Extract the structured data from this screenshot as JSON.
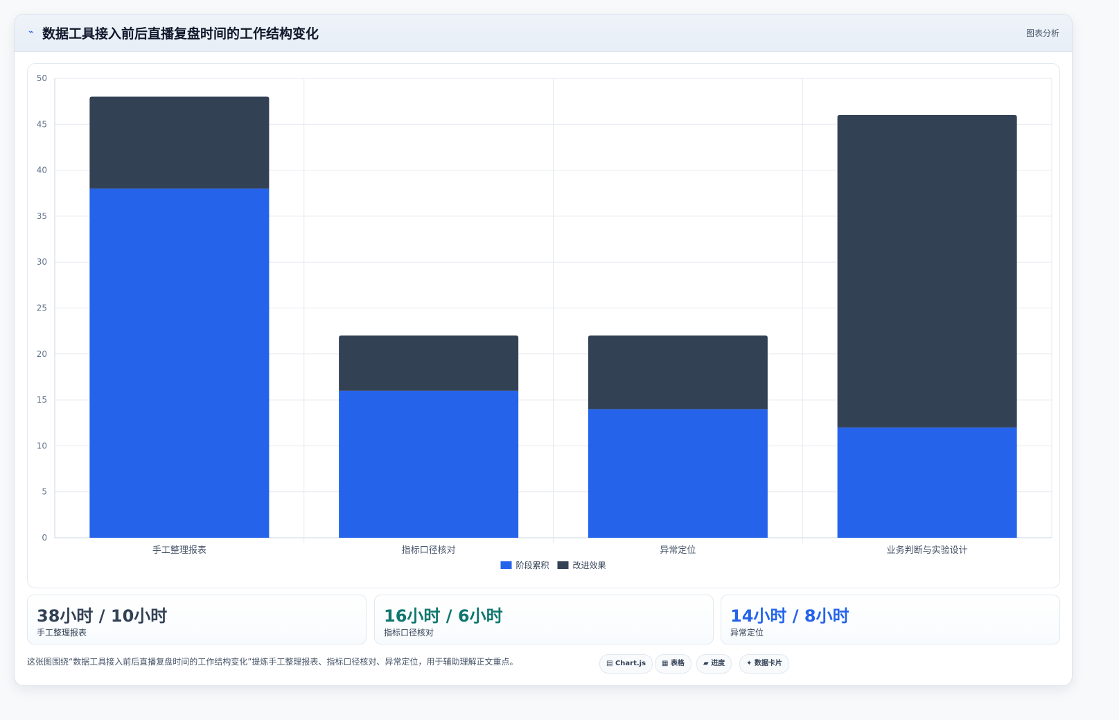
{
  "header": {
    "icon": "chart-line-icon",
    "title": "数据工具接入前后直播复盘时间的工作结构变化",
    "tag": "图表分析"
  },
  "chart_data": {
    "type": "bar",
    "stacked": true,
    "categories": [
      "手工整理报表",
      "指标口径核对",
      "异常定位",
      "业务判断与实验设计"
    ],
    "series": [
      {
        "name": "阶段累积",
        "color": "#2563eb",
        "values": [
          38,
          16,
          14,
          12
        ]
      },
      {
        "name": "改进效果",
        "color": "#334155",
        "values": [
          10,
          6,
          8,
          34
        ]
      }
    ],
    "ylim": [
      0,
      50
    ],
    "yticks": [
      0,
      5,
      10,
      15,
      20,
      25,
      30,
      35,
      40,
      45,
      50
    ],
    "grid": true,
    "legend": "bottom-center"
  },
  "stats": [
    {
      "value": "38小时 / 10小时",
      "label": "手工整理报表",
      "color": "#334155"
    },
    {
      "value": "16小时 / 6小时",
      "label": "指标口径核对",
      "color": "#0f766e"
    },
    {
      "value": "14小时 / 8小时",
      "label": "异常定位",
      "color": "#2563eb"
    }
  ],
  "footnote": "这张图围绕“数据工具接入前后直播复盘时间的工作结构变化”提炼手工整理报表、指标口径核对、异常定位，用于辅助理解正文重点。",
  "pills": [
    {
      "icon": "▤",
      "label": "Chart.js"
    },
    {
      "icon": "▦",
      "label": "表格"
    },
    {
      "icon": "▰",
      "label": "进度"
    },
    {
      "icon": "✦",
      "label": "数据卡片"
    }
  ]
}
